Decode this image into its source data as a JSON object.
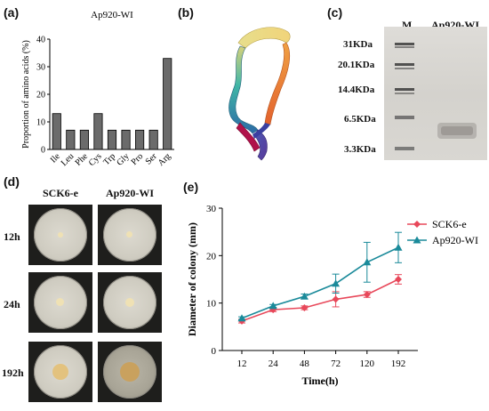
{
  "panel_a": {
    "letter": "(a)",
    "chart_data": {
      "type": "bar",
      "title": "Ap920-WI",
      "categories": [
        "Ile",
        "Leu",
        "Phe",
        "Cys",
        "Trp",
        "Gly",
        "Pro",
        "Ser",
        "Arg"
      ],
      "values": [
        13,
        7,
        7,
        13,
        7,
        7,
        7,
        7,
        33
      ],
      "ylabel": "Proportion of amino acids (%)",
      "xlabel": "",
      "ylim": [
        0,
        40
      ],
      "yticks": [
        0,
        10,
        20,
        30,
        40
      ],
      "bar_color": "#6b6b6b",
      "grid": false
    }
  },
  "panel_b": {
    "letter": "(b)"
  },
  "panel_c": {
    "letter": "(c)",
    "lane_labels": [
      "M",
      "Ap920-WI"
    ],
    "markers": [
      "31KDa",
      "20.1KDa",
      "14.4KDa",
      "6.5KDa",
      "3.3KDa"
    ]
  },
  "panel_d": {
    "letter": "(d)",
    "columns": [
      "SCK6-e",
      "Ap920-WI"
    ],
    "rows": [
      "12h",
      "24h",
      "192h"
    ]
  },
  "panel_e": {
    "letter": "(e)",
    "chart_data": {
      "type": "line",
      "categories": [
        "12",
        "24",
        "48",
        "72",
        "120",
        "192"
      ],
      "series": [
        {
          "name": "SCK6-e",
          "values": [
            6.2,
            8.6,
            9.0,
            10.8,
            11.8,
            15.0
          ],
          "errors": [
            0.4,
            0.4,
            0.4,
            1.6,
            0.6,
            1.0
          ],
          "color": "#e8485a",
          "marker": "diamond"
        },
        {
          "name": "Ap920-WI",
          "values": [
            6.8,
            9.4,
            11.4,
            14.1,
            18.6,
            21.7
          ],
          "errors": [
            0.3,
            0.3,
            0.5,
            2.0,
            4.2,
            3.2
          ],
          "color": "#1a8a9a",
          "marker": "triangle"
        }
      ],
      "xlabel": "Time(h)",
      "ylabel": "Diameter of colony (mm)",
      "ylim": [
        0,
        30
      ],
      "yticks": [
        0,
        10,
        20,
        30
      ],
      "legend": "top-right",
      "grid": false
    }
  }
}
